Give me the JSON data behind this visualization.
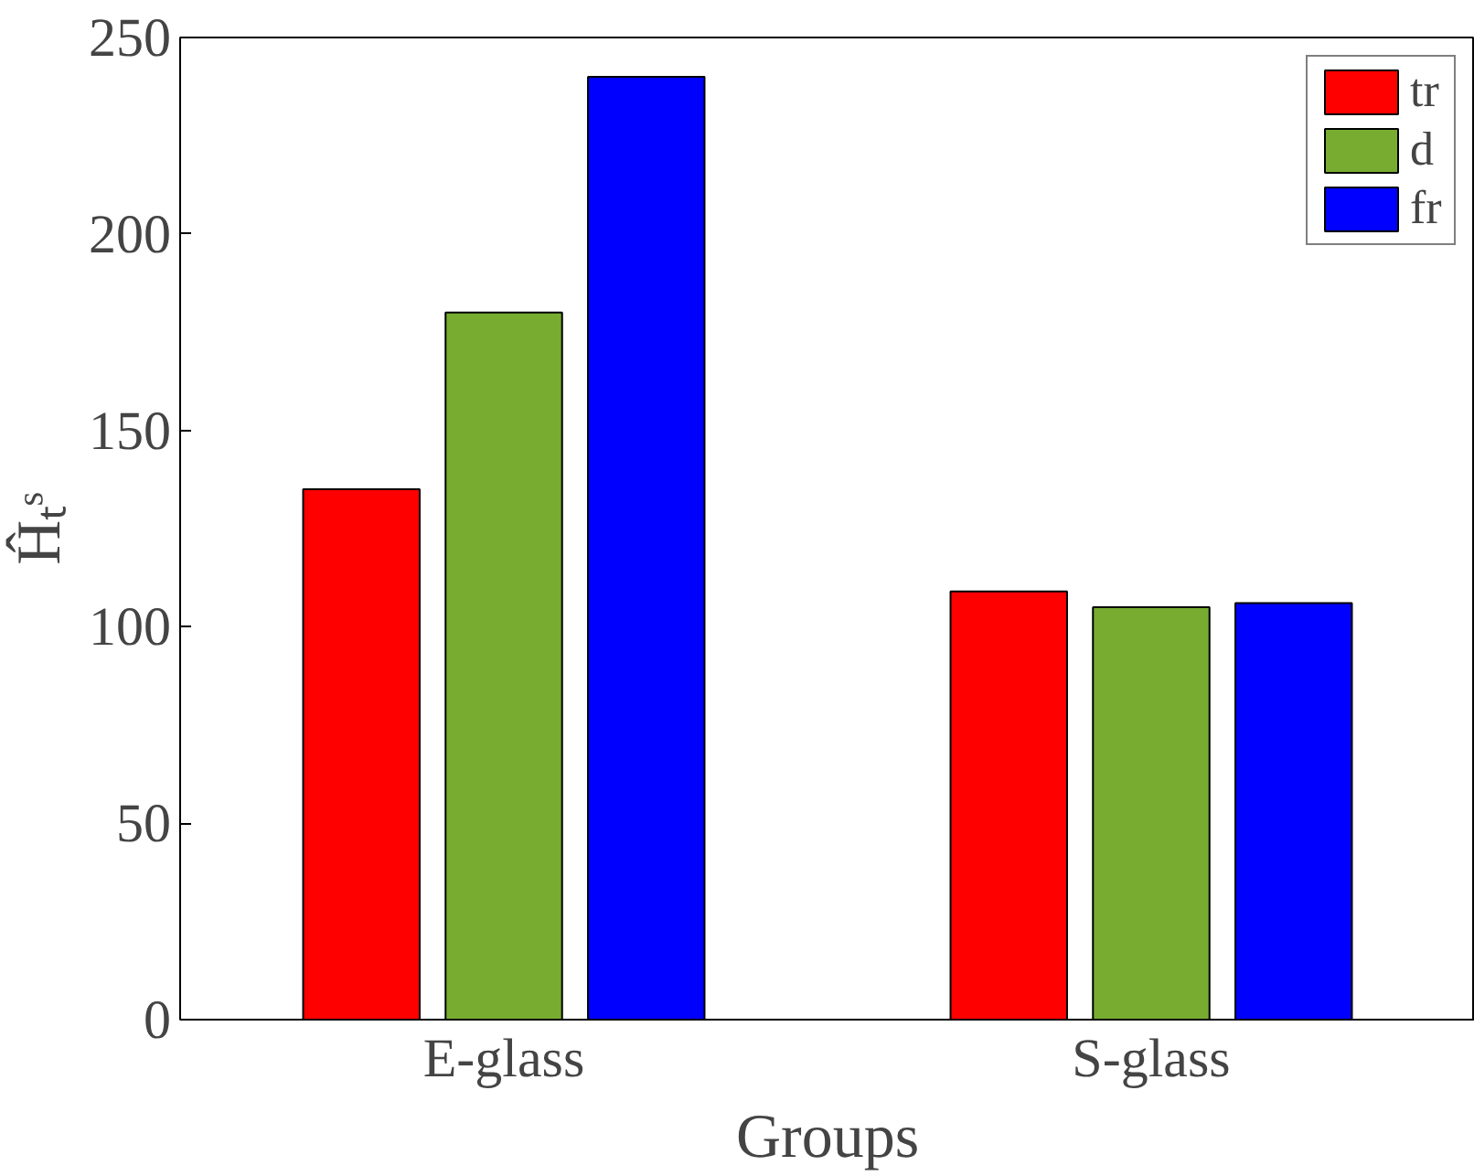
{
  "chart_data": {
    "type": "bar",
    "xlabel": "Groups",
    "ylabel": "Ĥₜˢ",
    "categories": [
      "E-glass",
      "S-glass"
    ],
    "series": [
      {
        "name": "tr",
        "color": "#ff0000",
        "values": [
          135,
          109
        ]
      },
      {
        "name": "d",
        "color": "#77ac30",
        "values": [
          180,
          105
        ]
      },
      {
        "name": "fr",
        "color": "#0000ff",
        "values": [
          240,
          106
        ]
      }
    ],
    "ylim": [
      0,
      250
    ],
    "yticks": [
      0,
      50,
      100,
      150,
      200,
      250
    ],
    "grid": false,
    "legend": "top right"
  }
}
